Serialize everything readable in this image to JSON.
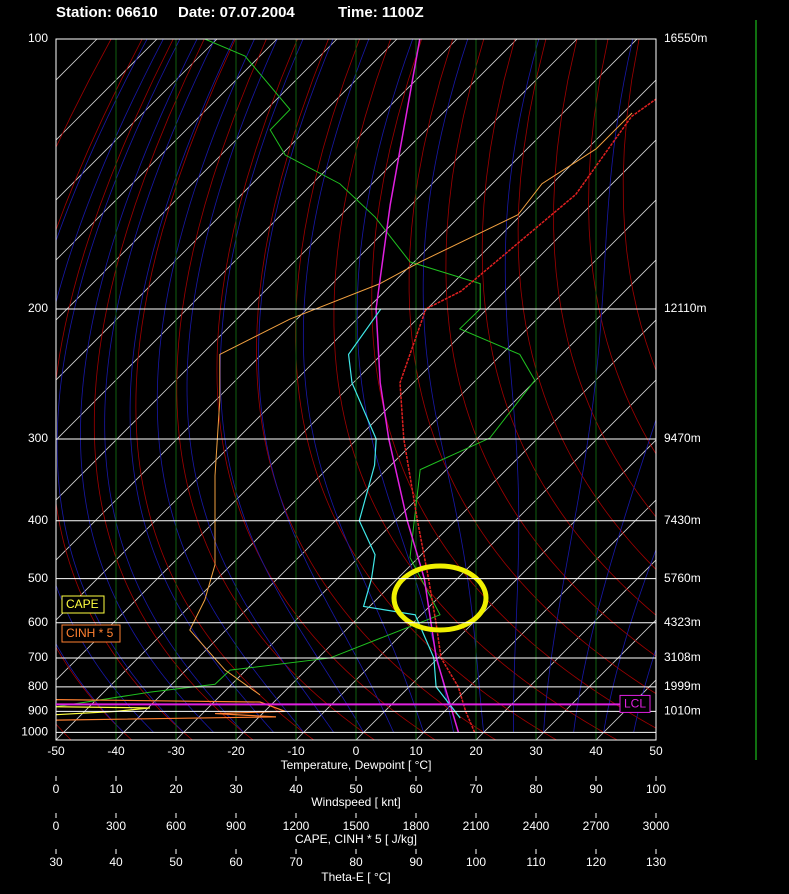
{
  "chart_data": {
    "type": "skewt",
    "station": "Station: 06610",
    "date": "Date: 07.07.2004",
    "time": "Time: 1100Z",
    "xlabel": "Temperature, Dewpoint  [ °C]",
    "xlim": [
      -50,
      50
    ],
    "xticks": [
      -50,
      -40,
      -30,
      -20,
      -10,
      0,
      10,
      20,
      30,
      40,
      50
    ],
    "ylim": [
      1040,
      100
    ],
    "yticks": [
      100,
      200,
      300,
      400,
      500,
      600,
      700,
      800,
      900,
      1000
    ],
    "height_labels": [
      {
        "value": 100,
        "label": "16550m"
      },
      {
        "value": 200,
        "label": "12110m"
      },
      {
        "value": 300,
        "label": "9470m"
      },
      {
        "value": 400,
        "label": "7430m"
      },
      {
        "value": 500,
        "label": "5760m"
      },
      {
        "value": 600,
        "label": "4323m"
      },
      {
        "value": 700,
        "label": "3108m"
      },
      {
        "value": 800,
        "label": "1999m"
      },
      {
        "value": 900,
        "label": "1010m"
      }
    ],
    "windspeed_axis": {
      "label": "Windspeed  [ knt]",
      "xlim": [
        0,
        100
      ],
      "xticks": [
        0,
        10,
        20,
        30,
        40,
        50,
        60,
        70,
        80,
        90,
        100
      ]
    },
    "cape_axis": {
      "label": "CAPE, CINH * 5  [ J/kg]",
      "xlim": [
        0,
        3000
      ],
      "xticks": [
        0,
        300,
        600,
        900,
        1200,
        1500,
        1800,
        2100,
        2400,
        2700,
        3000
      ]
    },
    "theta_e_axis": {
      "label": "Theta-E  [ °C]",
      "xlim": [
        30,
        130
      ],
      "xticks": [
        30,
        40,
        50,
        60,
        70,
        80,
        90,
        100,
        110,
        120,
        130
      ]
    },
    "temperature": {
      "color": "#e02020",
      "levels": [
        1000,
        900,
        800,
        700,
        600,
        500,
        400,
        300,
        250,
        200,
        190,
        146,
        120,
        115
      ],
      "values": [
        18.5,
        13.5,
        8.2,
        0.5,
        -6.2,
        -14.8,
        -26.3,
        -42.2,
        -52.2,
        -60.2,
        -57.3,
        -54.3,
        -58,
        -56.8
      ]
    },
    "dewpoint": {
      "color": "#40e8e8",
      "levels": [
        930,
        800,
        700,
        580,
        560,
        500,
        455,
        400,
        328,
        300,
        250,
        229,
        200
      ],
      "values": [
        13.7,
        4.5,
        -0.7,
        -11,
        -21,
        -24.3,
        -27.7,
        -36,
        -42.7,
        -46.8,
        -60.2,
        -65.5,
        -67.7
      ]
    },
    "parcel": {
      "color": "#e020e0",
      "levels": [
        1000,
        700,
        500,
        400,
        300,
        250,
        200,
        150,
        100
      ],
      "values": [
        15.8,
        -0.3,
        -15.5,
        -28,
        -44.7,
        -55.5,
        -68.5,
        -83.5,
        -106.2
      ]
    },
    "windspeed": {
      "color": "#20c020",
      "levels": [
        100,
        104,
        118,
        124,
        132,
        142,
        155,
        175,
        186,
        200,
        212,
        229,
        248,
        299,
        333,
        460,
        580,
        700,
        740,
        790,
        820,
        880
      ],
      "values": [
        24.8,
        31.5,
        39,
        35.7,
        38.2,
        47.3,
        53.2,
        59,
        70.7,
        70.7,
        67.3,
        77.3,
        79.8,
        72.3,
        60.7,
        59,
        64,
        45.7,
        29,
        26.5,
        15.7,
        0
      ]
    },
    "theta_e": {
      "color": "#f0a040",
      "levels": [
        831,
        740,
        619,
        545,
        473,
        340,
        264,
        229,
        206,
        186,
        175,
        154,
        142,
        130,
        119
      ],
      "values": [
        64,
        58.2,
        52.3,
        54.8,
        56.5,
        56.5,
        57.3,
        57.3,
        69,
        84,
        90.7,
        107,
        111,
        120,
        126
      ]
    },
    "cape": {
      "color": "#ffff40",
      "levels": [
        880,
        885,
        900,
        915
      ],
      "values": [
        0,
        470,
        300,
        0
      ]
    },
    "cinh": {
      "color": "#ff8030",
      "levels": [
        850,
        860,
        900,
        910,
        925,
        940
      ],
      "values": [
        0,
        1020,
        1145,
        795,
        1100,
        0
      ]
    },
    "legend": [
      {
        "label": "CAPE",
        "color": "#ffff40"
      },
      {
        "label": "CINH * 5",
        "color": "#ff8030"
      }
    ],
    "lcl": {
      "label": "LCL",
      "level": 870,
      "color": "#e020e0"
    }
  }
}
